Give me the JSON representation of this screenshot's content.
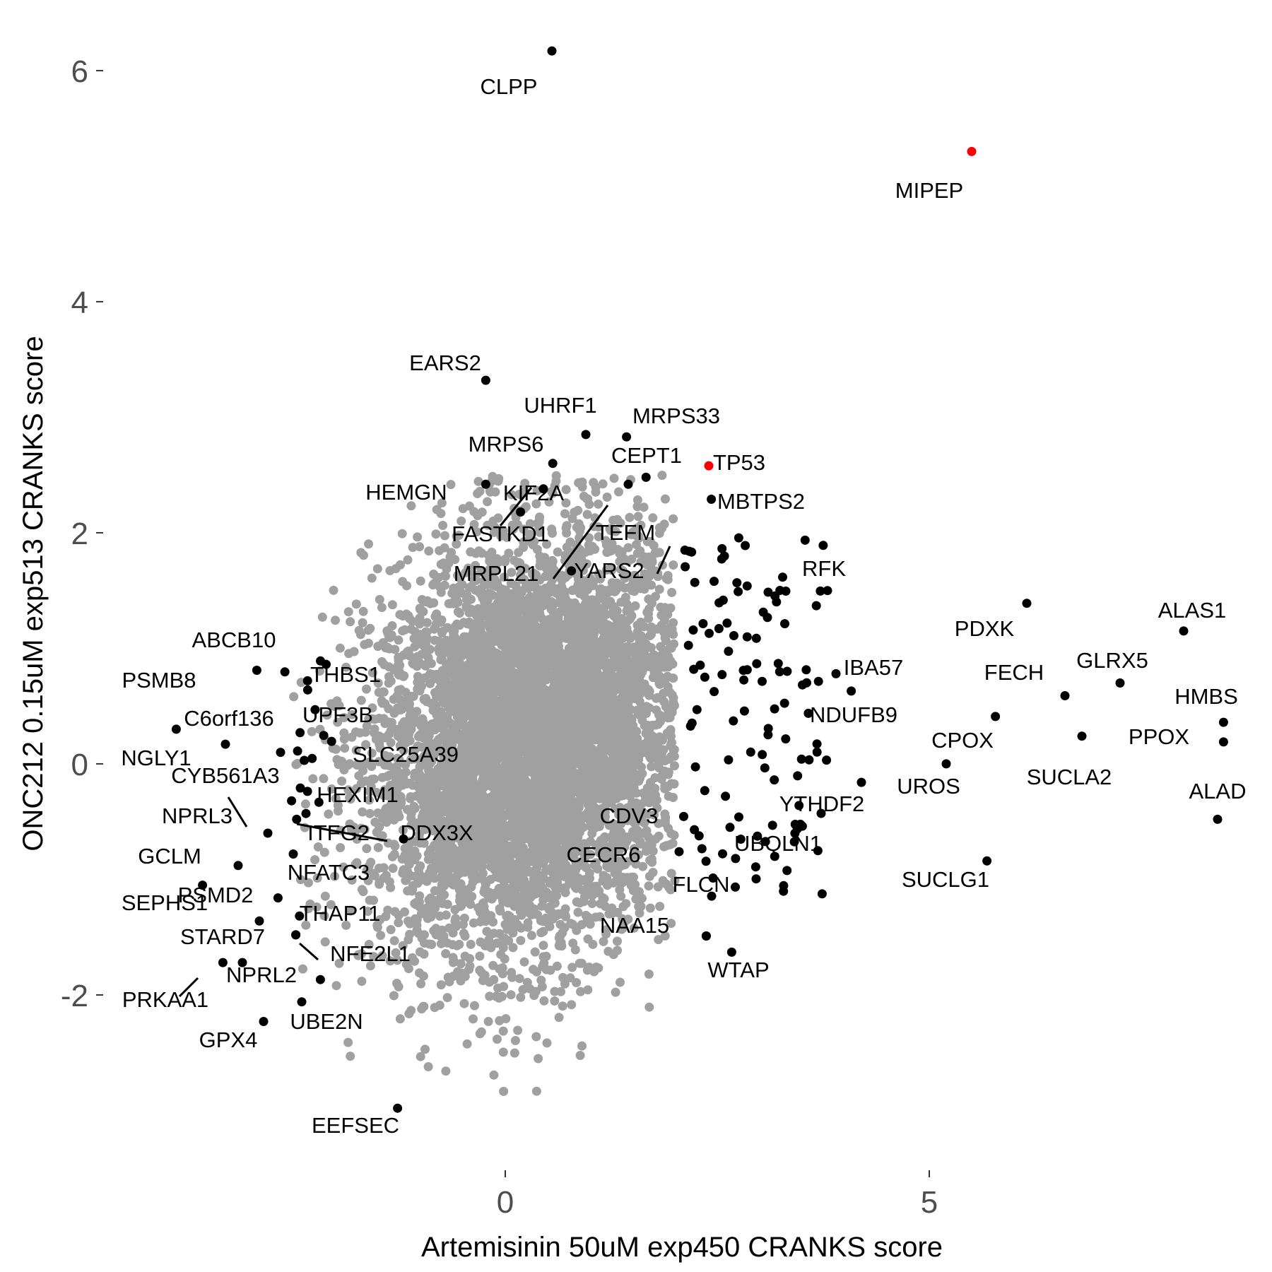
{
  "chart_data": {
    "type": "scatter",
    "title": "",
    "xlabel": "Artemisinin 50uM exp450 CRANKS score",
    "ylabel": "ONC212 0.15uM exp513 CRANKS score",
    "xlim": [
      -4.75,
      9.0
    ],
    "ylim": [
      -3.45,
      6.55
    ],
    "x_ticks": [
      0,
      5
    ],
    "y_ticks": [
      -2,
      0,
      2,
      4,
      6
    ],
    "x_tick_labels": [
      "0",
      "5"
    ],
    "y_tick_labels": [
      "-2",
      "0",
      "2",
      "4",
      "6"
    ],
    "grid": false,
    "legend": "none",
    "colors": {
      "background": "#gene",
      "bulk": "#a0a0a0",
      "hit": "#000000",
      "highlight": "#ff0000"
    },
    "highlighted_points": [
      {
        "label": "MIPEP",
        "x": 5.5,
        "y": 5.3
      },
      {
        "label": "TP53",
        "x": 2.4,
        "y": 2.58
      }
    ],
    "labeled_points": [
      {
        "label": "CLPP",
        "x": 0.55,
        "y": 6.17
      },
      {
        "label": "EARS2",
        "x": -0.23,
        "y": 3.32
      },
      {
        "label": "UHRF1",
        "x": 0.95,
        "y": 2.85
      },
      {
        "label": "MRPS33",
        "x": 1.43,
        "y": 2.83
      },
      {
        "label": "MRPS6",
        "x": 0.56,
        "y": 2.6
      },
      {
        "label": "CEPT1",
        "x": 1.66,
        "y": 2.48
      },
      {
        "label": "HEMGN",
        "x": -0.23,
        "y": 2.42
      },
      {
        "label": "KIF2A",
        "x": 0.45,
        "y": 2.38
      },
      {
        "label": "MBTPS2",
        "x": 2.43,
        "y": 2.29
      },
      {
        "label": "FASTKD1",
        "x": 0.18,
        "y": 2.18
      },
      {
        "label": "TEFM",
        "x": 1.45,
        "y": 2.42
      },
      {
        "label": "MRPL21",
        "x": 0.78,
        "y": 1.67
      },
      {
        "label": "YARS2",
        "x": 2.17,
        "y": 1.84
      },
      {
        "label": "RFK",
        "x": 3.8,
        "y": 1.5
      },
      {
        "label": "PDXK",
        "x": 6.15,
        "y": 1.39
      },
      {
        "label": "ALAS1",
        "x": 8.0,
        "y": 1.15
      },
      {
        "label": "ABCB10",
        "x": -2.93,
        "y": 0.81
      },
      {
        "label": "THBS1",
        "x": -2.33,
        "y": 0.64
      },
      {
        "label": "PSMB8",
        "x": -3.88,
        "y": 0.3
      },
      {
        "label": "IBA57",
        "x": 3.9,
        "y": 0.78
      },
      {
        "label": "GLRX5",
        "x": 7.25,
        "y": 0.7
      },
      {
        "label": "FECH",
        "x": 6.6,
        "y": 0.59
      },
      {
        "label": "C6orf136",
        "x": -3.3,
        "y": 0.17
      },
      {
        "label": "UPF3B",
        "x": -2.42,
        "y": 0.27
      },
      {
        "label": "NDUFB9",
        "x": 4.08,
        "y": 0.63
      },
      {
        "label": "HMBS",
        "x": 8.47,
        "y": 0.36
      },
      {
        "label": "PPOX",
        "x": 8.47,
        "y": 0.19
      },
      {
        "label": "SLC25A39",
        "x": -2.37,
        "y": 0.03
      },
      {
        "label": "NGLY1",
        "x": -2.65,
        "y": 0.1
      },
      {
        "label": "CPOX",
        "x": 5.78,
        "y": 0.41
      },
      {
        "label": "SUCLA2",
        "x": 6.8,
        "y": 0.24
      },
      {
        "label": "UROS",
        "x": 5.2,
        "y": 0.0
      },
      {
        "label": "CYB561A3",
        "x": -2.52,
        "y": -0.32
      },
      {
        "label": "HEXIM1",
        "x": -2.35,
        "y": -0.43
      },
      {
        "label": "YTHDF2",
        "x": 4.2,
        "y": -0.16
      },
      {
        "label": "ALAD",
        "x": 8.4,
        "y": -0.48
      },
      {
        "label": "NPRL3",
        "x": -2.8,
        "y": -0.6
      },
      {
        "label": "ITFG2",
        "x": -2.46,
        "y": -0.48
      },
      {
        "label": "DDX3X",
        "x": -1.2,
        "y": -0.65
      },
      {
        "label": "CDV3",
        "x": 2.23,
        "y": -0.57
      },
      {
        "label": "UBQLN1",
        "x": 2.65,
        "y": -0.55
      },
      {
        "label": "GCLM",
        "x": -3.15,
        "y": -0.88
      },
      {
        "label": "NFATC3",
        "x": -2.5,
        "y": -0.78
      },
      {
        "label": "CECR6",
        "x": 2.05,
        "y": -0.76
      },
      {
        "label": "SUCLG1",
        "x": 5.68,
        "y": -0.84
      },
      {
        "label": "SEPHS1",
        "x": -3.57,
        "y": -1.05
      },
      {
        "label": "PSMD2",
        "x": -2.68,
        "y": -1.16
      },
      {
        "label": "FLCN",
        "x": 2.37,
        "y": -1.49
      },
      {
        "label": "THAP11",
        "x": -2.47,
        "y": -1.48
      },
      {
        "label": "STARD7",
        "x": -2.9,
        "y": -1.36
      },
      {
        "label": "NFE2L1",
        "x": -2.47,
        "y": -1.48
      },
      {
        "label": "NAA15",
        "x": 2.37,
        "y": -1.49
      },
      {
        "label": "WTAP",
        "x": 2.67,
        "y": -1.63
      },
      {
        "label": "PRKAA1",
        "x": -3.33,
        "y": -1.72
      },
      {
        "label": "NPRL2",
        "x": -3.1,
        "y": -1.72
      },
      {
        "label": "UBE2N",
        "x": -2.4,
        "y": -2.06
      },
      {
        "label": "GPX4",
        "x": -2.85,
        "y": -2.23
      },
      {
        "label": "EEFSEC",
        "x": -1.27,
        "y": -2.98
      }
    ],
    "bulk_points": {
      "description_series": "gray cloud of remaining genes",
      "center": [
        0.3,
        0.2
      ],
      "sd": [
        0.95,
        0.9
      ],
      "count": 6000
    }
  }
}
